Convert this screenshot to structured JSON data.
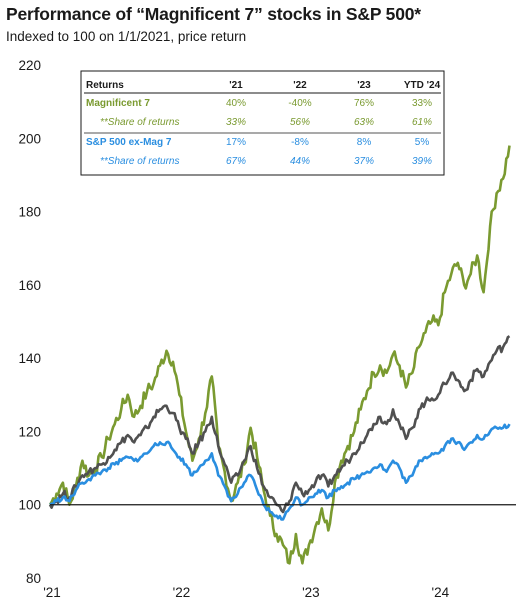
{
  "title": "Performance of “Magnificent 7” stocks in S&P 500*",
  "subtitle": "Indexed to 100 on 1/1/2021, price return",
  "colors": {
    "mag7": "#7a9a30",
    "sp_ex": "#2a8ee0",
    "sp500": "#505050"
  },
  "returns_table": {
    "header": [
      "Returns",
      "'21",
      "'22",
      "'23",
      "YTD '24"
    ],
    "rows": [
      {
        "label": "Magnificent 7",
        "values": [
          "40%",
          "-40%",
          "76%",
          "33%"
        ],
        "color": "#7a9a30",
        "style": "bold"
      },
      {
        "label": "**Share of returns",
        "values": [
          "33%",
          "56%",
          "63%",
          "61%"
        ],
        "color": "#7a9a30",
        "style": "italic"
      },
      {
        "label": "S&P 500 ex-Mag 7",
        "values": [
          "17%",
          "-8%",
          "8%",
          "5%"
        ],
        "color": "#2a8ee0",
        "style": "bold"
      },
      {
        "label": "**Share of returns",
        "values": [
          "67%",
          "44%",
          "37%",
          "39%"
        ],
        "color": "#2a8ee0",
        "style": "italic"
      }
    ]
  },
  "chart_data": {
    "type": "line",
    "title": "Performance of “Magnificent 7” stocks in S&P 500*",
    "subtitle": "Indexed to 100 on 1/1/2021, price return",
    "xlabel": "",
    "ylabel": "",
    "ylim": [
      80,
      220
    ],
    "yticks": [
      80,
      100,
      120,
      140,
      160,
      180,
      200,
      220
    ],
    "xlim": [
      2021.0,
      2024.6
    ],
    "xticks": [
      {
        "value": 2021.0,
        "label": "'21"
      },
      {
        "value": 2022.0,
        "label": "'22"
      },
      {
        "value": 2023.0,
        "label": "'23"
      },
      {
        "value": 2024.0,
        "label": "'24"
      }
    ],
    "grid": false,
    "legend": "none",
    "baseline": 100,
    "series": [
      {
        "key": "mag7",
        "x": [
          2021.0,
          2021.05,
          2021.1,
          2021.15,
          2021.2,
          2021.25,
          2021.3,
          2021.35,
          2021.4,
          2021.45,
          2021.5,
          2021.55,
          2021.6,
          2021.65,
          2021.7,
          2021.75,
          2021.8,
          2021.85,
          2021.9,
          2021.95,
          2022.0,
          2022.05,
          2022.1,
          2022.15,
          2022.2,
          2022.25,
          2022.3,
          2022.35,
          2022.4,
          2022.45,
          2022.5,
          2022.55,
          2022.6,
          2022.65,
          2022.7,
          2022.75,
          2022.8,
          2022.85,
          2022.9,
          2022.95,
          2023.0,
          2023.05,
          2023.1,
          2023.15,
          2023.2,
          2023.25,
          2023.3,
          2023.35,
          2023.4,
          2023.45,
          2023.5,
          2023.55,
          2023.6,
          2023.65,
          2023.7,
          2023.75,
          2023.8,
          2023.85,
          2023.9,
          2023.95,
          2024.0,
          2024.05,
          2024.1,
          2024.15,
          2024.2,
          2024.25,
          2024.3,
          2024.35,
          2024.4,
          2024.45,
          2024.5,
          2024.55
        ],
        "y": [
          100,
          103,
          106,
          100,
          105,
          112,
          108,
          110,
          113,
          118,
          122,
          126,
          130,
          124,
          127,
          131,
          133,
          138,
          142,
          139,
          130,
          120,
          112,
          118,
          125,
          135,
          116,
          109,
          101,
          106,
          111,
          121,
          113,
          104,
          97,
          92,
          89,
          84,
          92,
          84,
          89,
          94,
          99,
          93,
          106,
          112,
          116,
          120,
          126,
          131,
          136,
          138,
          136,
          141,
          138,
          132,
          136,
          143,
          147,
          150,
          149,
          158,
          163,
          166,
          160,
          163,
          168,
          158,
          176,
          185,
          189,
          198
        ]
      },
      {
        "key": "sp500",
        "x": [
          2021.0,
          2021.05,
          2021.1,
          2021.15,
          2021.2,
          2021.25,
          2021.3,
          2021.35,
          2021.4,
          2021.45,
          2021.5,
          2021.55,
          2021.6,
          2021.65,
          2021.7,
          2021.75,
          2021.8,
          2021.85,
          2021.9,
          2021.95,
          2022.0,
          2022.05,
          2022.1,
          2022.15,
          2022.2,
          2022.25,
          2022.3,
          2022.35,
          2022.4,
          2022.45,
          2022.5,
          2022.55,
          2022.6,
          2022.65,
          2022.7,
          2022.75,
          2022.8,
          2022.85,
          2022.9,
          2022.95,
          2023.0,
          2023.05,
          2023.1,
          2023.15,
          2023.2,
          2023.25,
          2023.3,
          2023.35,
          2023.4,
          2023.45,
          2023.5,
          2023.55,
          2023.6,
          2023.65,
          2023.7,
          2023.75,
          2023.8,
          2023.85,
          2023.9,
          2023.95,
          2024.0,
          2024.05,
          2024.1,
          2024.15,
          2024.2,
          2024.25,
          2024.3,
          2024.35,
          2024.4,
          2024.45,
          2024.5,
          2024.55
        ],
        "y": [
          100,
          101,
          103,
          102,
          105,
          108,
          109,
          110,
          111,
          113,
          115,
          117,
          119,
          117,
          119,
          121,
          124,
          126,
          127,
          125,
          121,
          118,
          114,
          117,
          120,
          124,
          116,
          111,
          106,
          108,
          112,
          116,
          110,
          105,
          102,
          100,
          98,
          101,
          106,
          103,
          104,
          106,
          108,
          105,
          108,
          110,
          112,
          114,
          117,
          119,
          122,
          124,
          122,
          126,
          122,
          118,
          121,
          126,
          128,
          129,
          130,
          133,
          136,
          134,
          131,
          134,
          137,
          135,
          139,
          142,
          143,
          146
        ]
      },
      {
        "key": "sp_ex",
        "x": [
          2021.0,
          2021.05,
          2021.1,
          2021.15,
          2021.2,
          2021.25,
          2021.3,
          2021.35,
          2021.4,
          2021.45,
          2021.5,
          2021.55,
          2021.6,
          2021.65,
          2021.7,
          2021.75,
          2021.8,
          2021.85,
          2021.9,
          2021.95,
          2022.0,
          2022.05,
          2022.1,
          2022.15,
          2022.2,
          2022.25,
          2022.3,
          2022.35,
          2022.4,
          2022.45,
          2022.5,
          2022.55,
          2022.6,
          2022.65,
          2022.7,
          2022.75,
          2022.8,
          2022.85,
          2022.9,
          2022.95,
          2023.0,
          2023.05,
          2023.1,
          2023.15,
          2023.2,
          2023.25,
          2023.3,
          2023.35,
          2023.4,
          2023.45,
          2023.5,
          2023.55,
          2023.6,
          2023.65,
          2023.7,
          2023.75,
          2023.8,
          2023.85,
          2023.9,
          2023.95,
          2024.0,
          2024.05,
          2024.1,
          2024.15,
          2024.2,
          2024.25,
          2024.3,
          2024.35,
          2024.4,
          2024.45,
          2024.5,
          2024.55
        ],
        "y": [
          100,
          101,
          102,
          101,
          104,
          106,
          107,
          108,
          109,
          110,
          111,
          112,
          113,
          112,
          113,
          114,
          116,
          117,
          117,
          115,
          113,
          111,
          108,
          110,
          112,
          114,
          108,
          105,
          101,
          103,
          106,
          108,
          104,
          100,
          98,
          97,
          96,
          99,
          102,
          100,
          102,
          103,
          104,
          102,
          104,
          105,
          106,
          107,
          108,
          109,
          110,
          111,
          109,
          112,
          110,
          106,
          108,
          112,
          113,
          114,
          114,
          116,
          118,
          117,
          115,
          117,
          119,
          118,
          120,
          121,
          121,
          122
        ]
      }
    ]
  }
}
